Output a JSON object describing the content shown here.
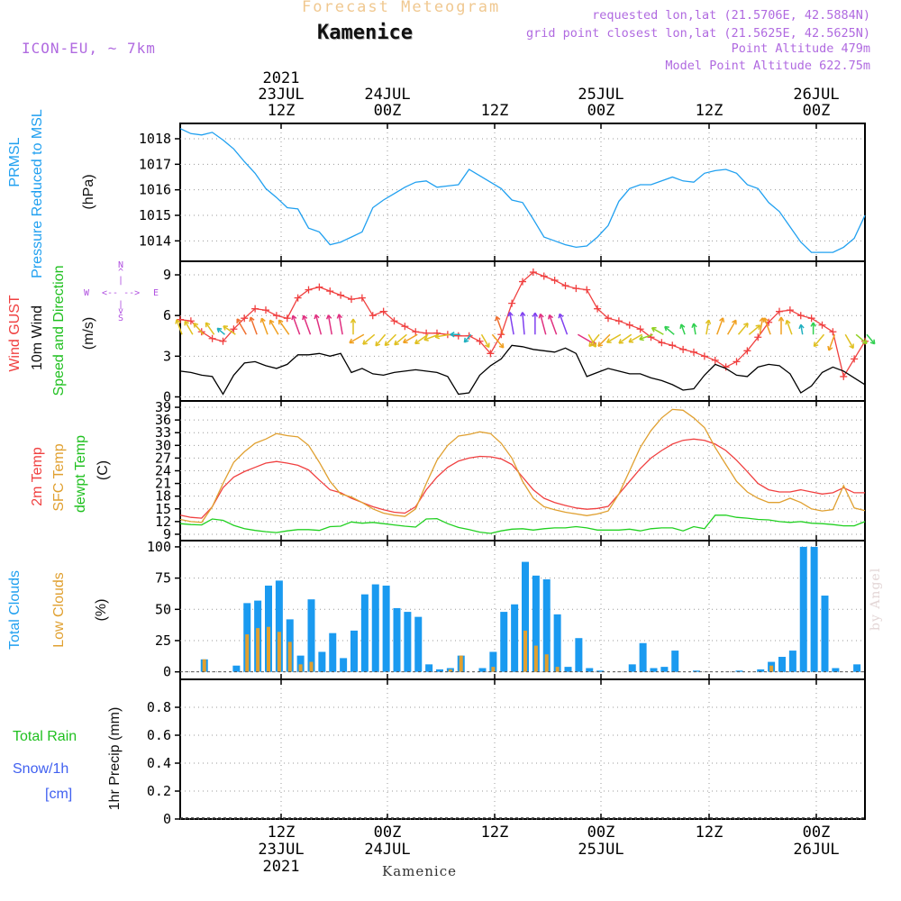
{
  "header": {
    "title": "Forecast Meteogram",
    "station": "Kamenice",
    "model": "ICON-EU, ~ 7km",
    "requested": "requested lon,lat (21.5706E, 42.5884N)",
    "grid_point": "grid point closest lon,lat (21.5625E, 42.5625N)",
    "point_altitude": "Point Altitude 479m",
    "model_altitude": "Model Point Altitude 622.75m"
  },
  "watermark": "by Angel",
  "footer_station": "Kamenice",
  "time_axis": {
    "top_year": "2021",
    "top_labels": [
      {
        "l1": "23JUL",
        "l2": "12Z"
      },
      {
        "l1": "24JUL",
        "l2": "00Z"
      },
      {
        "l1": "",
        "l2": "12Z"
      },
      {
        "l1": "25JUL",
        "l2": "00Z"
      },
      {
        "l1": "",
        "l2": "12Z"
      },
      {
        "l1": "26JUL",
        "l2": "00Z"
      }
    ],
    "bottom_labels": [
      {
        "l1": "12Z",
        "l2": "23JUL",
        "l3": "2021"
      },
      {
        "l1": "00Z",
        "l2": "24JUL",
        "l3": ""
      },
      {
        "l1": "12Z",
        "l2": "",
        "l3": ""
      },
      {
        "l1": "00Z",
        "l2": "25JUL",
        "l3": ""
      },
      {
        "l1": "12Z",
        "l2": "",
        "l3": ""
      },
      {
        "l1": "00Z",
        "l2": "26JUL",
        "l3": ""
      }
    ]
  },
  "panel_labels": {
    "prmsl": {
      "name": "PRMSL",
      "desc": "Pressure Reduced to MSL",
      "unit": "(hPa)"
    },
    "wind": {
      "gust": "Wind GUST",
      "wind10": "10m Wind",
      "dir": "Speed and Direction",
      "unit": "(m/s)",
      "compass_n": "N",
      "compass_s": "S",
      "compass_w": "W",
      "compass_e": "E"
    },
    "temp": {
      "t2m": "2m Temp",
      "sfc": "SFC Temp",
      "dew": "dewpt Temp",
      "unit": "(C)"
    },
    "clouds": {
      "total": "Total Clouds",
      "low": "Low Clouds",
      "unit": "(%)"
    },
    "precip": {
      "rain": "Total  Rain",
      "snow": "Snow/1h",
      "snow_unit": "[cm]",
      "axis": "1hr Precip (mm)"
    }
  },
  "chart_data": [
    {
      "type": "line",
      "title": "PRMSL Pressure Reduced to MSL",
      "ylabel": "(hPa)",
      "ylim": [
        1013.2,
        1018.6
      ],
      "yticks": [
        1014,
        1015,
        1016,
        1017,
        1018
      ],
      "x_hours": [
        0,
        1,
        2,
        3,
        4,
        5,
        6,
        7,
        8,
        9,
        10,
        11,
        12,
        13,
        14,
        15,
        16,
        17,
        18,
        19,
        20,
        21,
        22,
        23,
        24,
        25,
        26,
        27,
        28,
        29,
        30,
        31,
        32,
        33,
        34,
        35,
        36,
        37,
        38,
        39,
        40,
        41,
        42,
        43,
        44,
        45,
        46,
        47,
        48,
        49,
        50,
        51,
        52,
        53,
        54,
        55,
        56,
        57,
        58,
        59,
        60,
        61,
        62,
        63,
        64
      ],
      "series": [
        {
          "name": "PRMSL",
          "color": "#20a0f0",
          "values": [
            1018.4,
            1018.2,
            1018.15,
            1018.25,
            1017.95,
            1017.6,
            1017.1,
            1016.65,
            1016.05,
            1015.7,
            1015.3,
            1015.25,
            1014.5,
            1014.35,
            1013.85,
            1013.95,
            1014.15,
            1014.35,
            1015.3,
            1015.6,
            1015.85,
            1016.1,
            1016.3,
            1016.35,
            1016.1,
            1016.15,
            1016.2,
            1016.8,
            1016.55,
            1016.3,
            1016.05,
            1015.6,
            1015.5,
            1014.85,
            1014.15,
            1014.0,
            1013.85,
            1013.75,
            1013.8,
            1014.15,
            1014.6,
            1015.55,
            1016.05,
            1016.2,
            1016.2,
            1016.35,
            1016.5,
            1016.35,
            1016.3,
            1016.65,
            1016.75,
            1016.8,
            1016.65,
            1016.2,
            1016.05,
            1015.5,
            1015.15,
            1014.55,
            1013.95,
            1013.55,
            1013.55,
            1013.55,
            1013.75,
            1014.1,
            1015.0
          ]
        },
        {
          "name": "PRMSL_tail",
          "color": "#20a0f0",
          "values": []
        }
      ]
    },
    {
      "type": "line",
      "title": "Wind GUST / 10m Wind Speed and Direction",
      "ylabel": "(m/s)",
      "ylim": [
        -0.3,
        10
      ],
      "yticks": [
        0,
        3,
        6,
        9
      ],
      "x_hours": [
        0,
        1,
        2,
        3,
        4,
        5,
        6,
        7,
        8,
        9,
        10,
        11,
        12,
        13,
        14,
        15,
        16,
        17,
        18,
        19,
        20,
        21,
        22,
        23,
        24,
        25,
        26,
        27,
        28,
        29,
        30,
        31,
        32,
        33,
        34,
        35,
        36,
        37,
        38,
        39,
        40,
        41,
        42,
        43,
        44,
        45,
        46,
        47,
        48,
        49,
        50,
        51,
        52,
        53,
        54,
        55,
        56,
        57,
        58,
        59,
        60,
        61,
        62,
        63,
        64
      ],
      "series": [
        {
          "name": "Wind GUST",
          "color": "#f04040",
          "values": [
            5.7,
            5.6,
            4.8,
            4.3,
            4.1,
            5.0,
            5.8,
            6.5,
            6.4,
            6.0,
            5.8,
            7.3,
            7.9,
            8.1,
            7.8,
            7.5,
            7.2,
            7.3,
            6.0,
            6.3,
            5.6,
            5.2,
            4.8,
            4.7,
            4.7,
            4.6,
            4.5,
            4.5,
            4.1,
            3.2,
            4.6,
            6.9,
            8.5,
            9.2,
            8.9,
            8.6,
            8.2,
            8.0,
            7.9,
            6.5,
            5.8,
            5.6,
            5.3,
            5.0,
            4.4,
            4.0,
            3.8,
            3.5,
            3.3,
            3.0,
            2.7,
            2.2,
            2.6,
            3.4,
            4.4,
            5.5,
            6.3,
            6.4,
            6.0,
            5.8,
            5.3,
            4.8,
            1.5,
            2.8,
            4.1
          ]
        },
        {
          "name": "10m Wind",
          "color": "#000000",
          "values": [
            1.9,
            1.8,
            1.6,
            1.5,
            0.2,
            1.6,
            2.5,
            2.6,
            2.3,
            2.1,
            2.4,
            3.1,
            3.1,
            3.2,
            3.0,
            3.2,
            1.8,
            2.1,
            1.7,
            1.6,
            1.8,
            1.9,
            2.0,
            1.9,
            1.8,
            1.5,
            0.2,
            0.3,
            1.6,
            2.3,
            2.8,
            3.8,
            3.7,
            3.5,
            3.4,
            3.3,
            3.6,
            3.2,
            1.5,
            1.8,
            2.1,
            1.9,
            1.7,
            1.7,
            1.4,
            1.2,
            0.9,
            0.5,
            0.6,
            1.6,
            2.4,
            2.1,
            1.6,
            1.5,
            2.2,
            2.4,
            2.3,
            1.7,
            0.3,
            0.8,
            1.8,
            2.2,
            1.9,
            1.4,
            0.9
          ]
        }
      ]
    },
    {
      "type": "line",
      "title": "2m Temp / SFC Temp / dewpt Temp",
      "ylabel": "(C)",
      "ylim": [
        7.5,
        40.5
      ],
      "yticks": [
        9,
        12,
        15,
        18,
        21,
        24,
        27,
        30,
        33,
        36,
        39
      ],
      "x_hours": [
        0,
        1,
        2,
        3,
        4,
        5,
        6,
        7,
        8,
        9,
        10,
        11,
        12,
        13,
        14,
        15,
        16,
        17,
        18,
        19,
        20,
        21,
        22,
        23,
        24,
        25,
        26,
        27,
        28,
        29,
        30,
        31,
        32,
        33,
        34,
        35,
        36,
        37,
        38,
        39,
        40,
        41,
        42,
        43,
        44,
        45,
        46,
        47,
        48,
        49,
        50,
        51,
        52,
        53,
        54,
        55,
        56,
        57,
        58,
        59,
        60,
        61,
        62,
        63,
        64
      ],
      "series": [
        {
          "name": "2m Temp",
          "color": "#f04040",
          "values": [
            13.5,
            13.0,
            12.8,
            15.5,
            20.0,
            22.5,
            23.8,
            24.8,
            25.8,
            26.2,
            25.8,
            25.3,
            24.2,
            21.8,
            19.5,
            18.8,
            17.5,
            16.5,
            15.5,
            14.8,
            14.2,
            14.0,
            15.5,
            19.5,
            22.5,
            24.8,
            26.3,
            27.0,
            27.4,
            27.3,
            26.8,
            25.5,
            22.5,
            19.5,
            17.5,
            16.5,
            15.8,
            15.2,
            14.9,
            15.1,
            15.6,
            18.5,
            21.5,
            24.5,
            27.0,
            28.8,
            30.3,
            31.2,
            31.5,
            31.2,
            30.3,
            28.8,
            26.5,
            23.8,
            21.0,
            19.5,
            19.0,
            19.0,
            19.5,
            19.0,
            18.5,
            18.8,
            20.0,
            18.8,
            18.8
          ]
        },
        {
          "name": "SFC Temp",
          "color": "#e0a030",
          "values": [
            12.5,
            12.0,
            11.8,
            15.5,
            21.0,
            26.0,
            28.5,
            30.5,
            31.5,
            32.8,
            32.3,
            32.0,
            30.0,
            26.0,
            21.5,
            18.5,
            17.8,
            16.5,
            15.0,
            14.0,
            13.5,
            13.2,
            15.0,
            21.0,
            26.5,
            30.0,
            32.2,
            32.6,
            33.2,
            32.8,
            30.5,
            27.0,
            21.5,
            17.5,
            15.5,
            14.8,
            14.2,
            13.8,
            13.4,
            13.8,
            14.5,
            18.5,
            24.0,
            29.5,
            33.5,
            36.5,
            38.5,
            38.3,
            36.5,
            34.2,
            29.5,
            25.5,
            21.5,
            19.0,
            17.5,
            16.5,
            16.5,
            17.5,
            16.5,
            15.0,
            14.5,
            14.8,
            20.5,
            15.2,
            14.6
          ]
        },
        {
          "name": "dewpt Temp",
          "color": "#20d020",
          "values": [
            11.5,
            11.3,
            11.2,
            12.6,
            12.3,
            11.1,
            10.3,
            9.9,
            9.6,
            9.4,
            9.8,
            10.1,
            10.1,
            9.9,
            10.8,
            10.9,
            11.9,
            11.6,
            11.8,
            11.5,
            11.2,
            10.9,
            10.7,
            12.6,
            12.7,
            11.5,
            10.6,
            10.1,
            9.5,
            9.2,
            9.8,
            10.2,
            10.3,
            10.0,
            10.3,
            10.5,
            10.5,
            10.8,
            10.5,
            10.0,
            10.0,
            10.0,
            10.2,
            9.8,
            10.3,
            10.5,
            10.5,
            9.8,
            10.8,
            10.3,
            13.5,
            13.5,
            13.0,
            12.8,
            12.5,
            12.4,
            12.0,
            11.8,
            12.0,
            11.6,
            11.5,
            11.3,
            11.0,
            11.0,
            12.0
          ]
        }
      ]
    },
    {
      "type": "bar",
      "title": "Total Clouds / Low Clouds",
      "ylabel": "(%)",
      "ylim": [
        -6,
        105
      ],
      "yticks": [
        0,
        25,
        50,
        75,
        100
      ],
      "x_hours": [
        0,
        1,
        2,
        3,
        4,
        5,
        6,
        7,
        8,
        9,
        10,
        11,
        12,
        13,
        14,
        15,
        16,
        17,
        18,
        19,
        20,
        21,
        22,
        23,
        24,
        25,
        26,
        27,
        28,
        29,
        30,
        31,
        32,
        33,
        34,
        35,
        36,
        37,
        38,
        39,
        40,
        41,
        42,
        43,
        44,
        45,
        46,
        47,
        48,
        49,
        50,
        51,
        52,
        53,
        54,
        55,
        56,
        57,
        58,
        59,
        60,
        61,
        62,
        63,
        64
      ],
      "series": [
        {
          "name": "Total Clouds",
          "color": "#1a9af0",
          "values": [
            0,
            0,
            10,
            0,
            0,
            5,
            55,
            57,
            69,
            73,
            42,
            13,
            58,
            16,
            31,
            11,
            33,
            62,
            70,
            69,
            51,
            48,
            44,
            6,
            2,
            3,
            13,
            0,
            3,
            16,
            48,
            54,
            88,
            77,
            74,
            46,
            4,
            27,
            3,
            1,
            0,
            0,
            6,
            23,
            3,
            4,
            17,
            0,
            1,
            0,
            0,
            0,
            1,
            0,
            2,
            8,
            12,
            17,
            100,
            100,
            61,
            3,
            0,
            6,
            0
          ]
        },
        {
          "name": "Low Clouds",
          "color": "#e0a030",
          "values": [
            0,
            0,
            10,
            0,
            0,
            0,
            30,
            35,
            36,
            32,
            24,
            6,
            8,
            0,
            0,
            0,
            0,
            0,
            0,
            0,
            0,
            0,
            0,
            0,
            0,
            2,
            13,
            0,
            0,
            4,
            0,
            0,
            33,
            21,
            14,
            4,
            0,
            0,
            0,
            0,
            0,
            0,
            0,
            0,
            0,
            0,
            0,
            0,
            0,
            0,
            0,
            0,
            0,
            0,
            0,
            5,
            0,
            0,
            0,
            0,
            0,
            0,
            0,
            0,
            0
          ]
        }
      ]
    },
    {
      "type": "bar",
      "title": "Total Rain / Snow 1hr Precip",
      "ylabel": "1hr Precip (mm)",
      "ylim": [
        0,
        1.0
      ],
      "yticks": [
        0,
        0.2,
        0.4,
        0.6,
        0.8
      ],
      "x_hours": [
        0,
        8,
        16,
        24,
        32,
        40,
        48,
        56,
        64
      ],
      "series": [
        {
          "name": "Total Rain",
          "color": "#20d020",
          "values": [
            0,
            0,
            0,
            0,
            0,
            0,
            0,
            0,
            0
          ]
        },
        {
          "name": "Snow/1h",
          "color": "#4060f0",
          "values": [
            0,
            0,
            0,
            0,
            0,
            0,
            0,
            0,
            0
          ]
        }
      ]
    }
  ]
}
